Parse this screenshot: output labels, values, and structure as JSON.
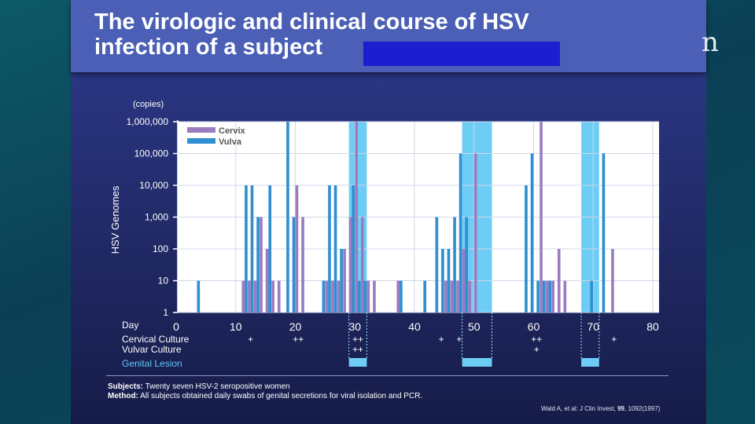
{
  "slide": {
    "title_line1": "The virologic and clinical course of HSV",
    "title_line2": "infection of a subject",
    "edge_glyph": "n",
    "subjects_label": "Subjects:",
    "subjects_text": "Twenty seven HSV-2 seropositive women",
    "method_label": "Method:",
    "method_text": "All subjects obtained daily swabs of genital secretions for viral isolation and PCR.",
    "citation_pre": "Wald A, et al: J Clin Invest,",
    "citation_vol": "99",
    "citation_post": ", 1092(1997)"
  },
  "chart_data": {
    "type": "bar",
    "units_label": "(copies)",
    "ylabel": "HSV Genomes",
    "xlabel": "Day",
    "y_scale": "log",
    "ylim": [
      1,
      1000000
    ],
    "y_ticks": [
      {
        "value": 1000000,
        "label": "1,000,000"
      },
      {
        "value": 100000,
        "label": "100,000"
      },
      {
        "value": 10000,
        "label": "10,000"
      },
      {
        "value": 1000,
        "label": "1,000"
      },
      {
        "value": 100,
        "label": "100"
      },
      {
        "value": 10,
        "label": "10"
      },
      {
        "value": 1,
        "label": "1"
      }
    ],
    "xlim": [
      0,
      80
    ],
    "x_ticks": [
      0,
      10,
      20,
      30,
      40,
      50,
      60,
      70,
      80
    ],
    "legend_position": "top-left",
    "colors": {
      "cervix": "#9b7cc0",
      "vulva": "#2f8fd0",
      "lesion": "#6dcdf5",
      "plot_bg": "#ffffff",
      "grid": "#cfd8e8"
    },
    "series": [
      {
        "name": "Cervix",
        "points": [
          [
            11,
            10
          ],
          [
            12,
            10
          ],
          [
            13,
            10
          ],
          [
            14,
            1000
          ],
          [
            15,
            100
          ],
          [
            16,
            10
          ],
          [
            17,
            10
          ],
          [
            20,
            10000
          ],
          [
            21,
            1000
          ],
          [
            25,
            10
          ],
          [
            26,
            10
          ],
          [
            27,
            10
          ],
          [
            28,
            100
          ],
          [
            29,
            1000
          ],
          [
            30,
            1000000
          ],
          [
            31,
            1000
          ],
          [
            32,
            10
          ],
          [
            33,
            10
          ],
          [
            37,
            10
          ],
          [
            45,
            10
          ],
          [
            46,
            10
          ],
          [
            47,
            10
          ],
          [
            48,
            100
          ],
          [
            49,
            10
          ],
          [
            50,
            100000
          ],
          [
            61,
            1000000
          ],
          [
            62,
            10
          ],
          [
            63,
            10
          ],
          [
            64,
            100
          ],
          [
            65,
            10
          ],
          [
            73,
            100
          ]
        ]
      },
      {
        "name": "Vulva",
        "points": [
          [
            4,
            10
          ],
          [
            12,
            10000
          ],
          [
            13,
            10000
          ],
          [
            14,
            1000
          ],
          [
            16,
            10000
          ],
          [
            19,
            1000000
          ],
          [
            20,
            1000
          ],
          [
            25,
            10
          ],
          [
            26,
            10000
          ],
          [
            27,
            10000
          ],
          [
            28,
            100
          ],
          [
            30,
            10000
          ],
          [
            31,
            10
          ],
          [
            32,
            10
          ],
          [
            38,
            10
          ],
          [
            42,
            10
          ],
          [
            44,
            1000
          ],
          [
            45,
            100
          ],
          [
            46,
            100
          ],
          [
            47,
            1000
          ],
          [
            48,
            100000
          ],
          [
            49,
            1000
          ],
          [
            59,
            10000
          ],
          [
            60,
            100000
          ],
          [
            61,
            10
          ],
          [
            62,
            10
          ],
          [
            63,
            10
          ],
          [
            70,
            10
          ],
          [
            72,
            100000
          ]
        ]
      }
    ],
    "genital_lesions": [
      [
        29,
        32
      ],
      [
        48,
        53
      ],
      [
        68,
        71
      ]
    ],
    "culture_rows": [
      {
        "name": "Cervical Culture",
        "marks": [
          {
            "day": 12,
            "text": "+"
          },
          {
            "day": 20,
            "text": "++"
          },
          {
            "day": 30,
            "text": "++"
          },
          {
            "day": 44,
            "text": "+"
          },
          {
            "day": 47,
            "text": "+"
          },
          {
            "day": 60,
            "text": "++"
          },
          {
            "day": 73,
            "text": "+"
          }
        ]
      },
      {
        "name": "Vulvar Culture",
        "marks": [
          {
            "day": 30,
            "text": "++"
          },
          {
            "day": 60,
            "text": "+"
          }
        ]
      }
    ],
    "lesion_row_label": "Genital Lesion"
  }
}
